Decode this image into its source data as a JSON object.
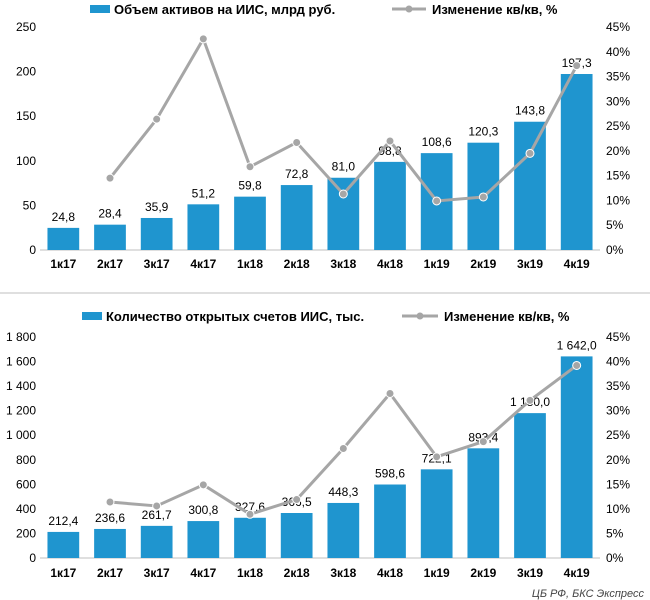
{
  "colors": {
    "bar": "#1f95cf",
    "line": "#a6a6a6",
    "marker": "#a6a6a6",
    "divider": "#bfbfbf",
    "axis": "#bfbfbf"
  },
  "source": "ЦБ РФ, БКС Экспресс",
  "chart_data": [
    {
      "type": "bar",
      "categories": [
        "1к17",
        "2к17",
        "3к17",
        "4к17",
        "1к18",
        "2к18",
        "3к18",
        "4к18",
        "1к19",
        "2к19",
        "3к19",
        "4к19"
      ],
      "ylim": [
        0,
        250
      ],
      "yticks": [
        "0",
        "50",
        "100",
        "150",
        "200",
        "250"
      ],
      "y2lim": [
        0,
        45
      ],
      "y2ticks": [
        "0%",
        "5%",
        "10%",
        "15%",
        "20%",
        "25%",
        "30%",
        "35%",
        "40%",
        "45%"
      ],
      "grid": false,
      "legend_position": "top",
      "series": [
        {
          "name": "Объем активов на ИИС, млрд руб.",
          "kind": "bar",
          "axis": "left",
          "values": [
            24.8,
            28.4,
            35.9,
            51.2,
            59.8,
            72.8,
            81.0,
            98.8,
            108.6,
            120.3,
            143.8,
            197.3
          ],
          "labels": [
            "24,8",
            "28,4",
            "35,9",
            "51,2",
            "59,8",
            "72,8",
            "81,0",
            "98,8",
            "108,6",
            "120,3",
            "143,8",
            "197,3"
          ]
        },
        {
          "name": "Изменение кв/кв, %",
          "kind": "line",
          "axis": "right",
          "values": [
            null,
            14.5,
            26.4,
            42.6,
            16.8,
            21.7,
            11.3,
            22.0,
            9.9,
            10.7,
            19.5,
            37.2
          ]
        }
      ]
    },
    {
      "type": "bar",
      "categories": [
        "1к17",
        "2к17",
        "3к17",
        "4к17",
        "1к18",
        "2к18",
        "3к18",
        "4к18",
        "1к19",
        "2к19",
        "3к19",
        "4к19"
      ],
      "ylim": [
        0,
        1800
      ],
      "yticks": [
        "0",
        "200",
        "400",
        "600",
        "800",
        "1 000",
        "1 200",
        "1 400",
        "1 600",
        "1 800"
      ],
      "y2lim": [
        0,
        45
      ],
      "y2ticks": [
        "0%",
        "5%",
        "10%",
        "15%",
        "20%",
        "25%",
        "30%",
        "35%",
        "40%",
        "45%"
      ],
      "grid": false,
      "legend_position": "top",
      "series": [
        {
          "name": "Количество открытых счетов ИИС, тыс.",
          "kind": "bar",
          "axis": "left",
          "values": [
            212.4,
            236.6,
            261.7,
            300.8,
            327.6,
            366.5,
            448.3,
            598.6,
            722.1,
            893.4,
            1180.0,
            1642.0
          ],
          "labels": [
            "212,4",
            "236,6",
            "261,7",
            "300,8",
            "327,6",
            "366,5",
            "448,3",
            "598,6",
            "722,1",
            "893,4",
            "1 180,0",
            "1 642,0"
          ]
        },
        {
          "name": "Изменение кв/кв, %",
          "kind": "line",
          "axis": "right",
          "values": [
            null,
            11.4,
            10.6,
            14.9,
            8.9,
            11.9,
            22.3,
            33.5,
            20.6,
            23.7,
            32.1,
            39.2
          ]
        }
      ]
    }
  ]
}
